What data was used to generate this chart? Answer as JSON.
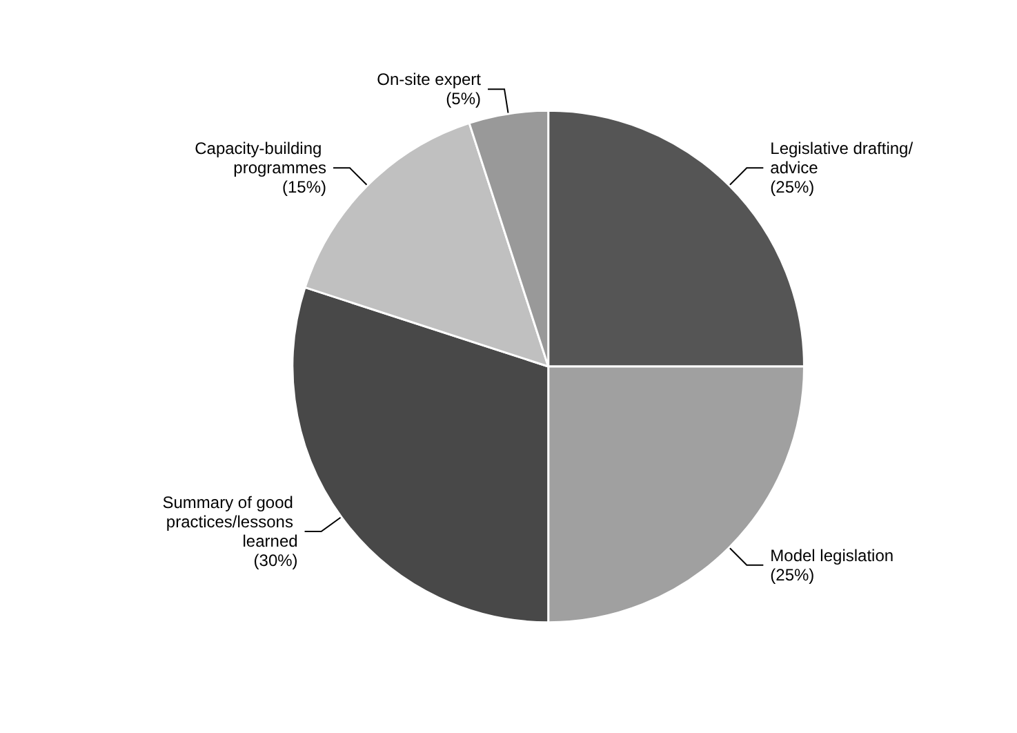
{
  "chart_data": {
    "type": "pie",
    "categories": [
      "Legislative drafting/advice",
      "Model legislation",
      "Summary of good practices/lessons learned",
      "Capacity-building programmes",
      "On-site expert"
    ],
    "values": [
      25,
      25,
      30,
      15,
      5
    ],
    "value_labels": [
      "(25%)",
      "(25%)",
      "(30%)",
      "(15%)",
      "(5%)"
    ],
    "colors": [
      "#555555",
      "#a0a0a0",
      "#484848",
      "#c0c0c0",
      "#999999"
    ],
    "legend": false
  }
}
